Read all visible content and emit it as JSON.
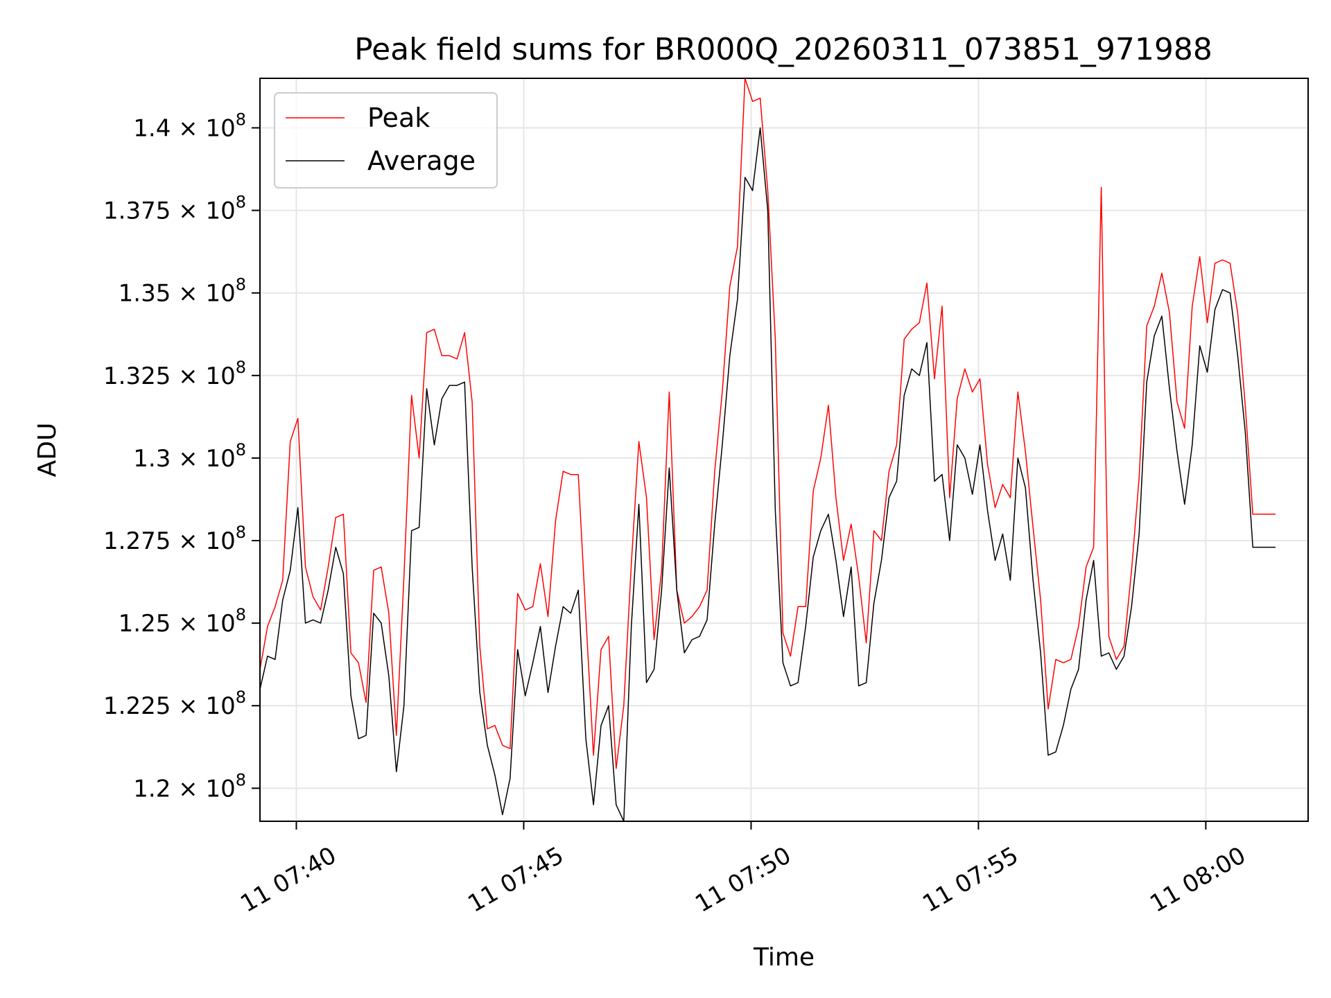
{
  "chart_data": {
    "type": "line",
    "title": "Peak field sums for BR000Q_20260311_073851_971988",
    "xlabel": "Time",
    "ylabel": "ADU",
    "grid": true,
    "legend_position": "top-left",
    "xlim_minutes": [
      -0.8,
      22.25
    ],
    "ylim": [
      119000000,
      141500000
    ],
    "x_ticks": [
      {
        "value": 0,
        "label": "11 07:40"
      },
      {
        "value": 5,
        "label": "11 07:45"
      },
      {
        "value": 10,
        "label": "11 07:50"
      },
      {
        "value": 15,
        "label": "11 07:55"
      },
      {
        "value": 20,
        "label": "11 08:00"
      }
    ],
    "y_ticks": [
      {
        "value": 120000000,
        "mantissa": "1.2"
      },
      {
        "value": 122500000,
        "mantissa": "1.225"
      },
      {
        "value": 125000000,
        "mantissa": "1.25"
      },
      {
        "value": 127500000,
        "mantissa": "1.275"
      },
      {
        "value": 130000000,
        "mantissa": "1.3"
      },
      {
        "value": 132500000,
        "mantissa": "1.325"
      },
      {
        "value": 135000000,
        "mantissa": "1.35"
      },
      {
        "value": 137500000,
        "mantissa": "1.375"
      },
      {
        "value": 140000000,
        "mantissa": "1.4"
      }
    ],
    "y_tick_suffix": "× 10",
    "y_tick_exponent": "8",
    "x_start_minutes": -0.8,
    "x_step_minutes": 0.16667,
    "series": [
      {
        "name": "Peak",
        "color": "#ff0000",
        "values": [
          123.6,
          124.9,
          125.5,
          126.3,
          130.5,
          131.2,
          126.7,
          125.8,
          125.4,
          126.7,
          128.2,
          128.3,
          124.1,
          123.8,
          122.6,
          126.6,
          126.7,
          125.3,
          121.6,
          126.4,
          131.9,
          130.0,
          133.8,
          133.9,
          133.1,
          133.1,
          133.0,
          133.8,
          131.7,
          124.3,
          121.8,
          121.9,
          121.3,
          121.2,
          125.9,
          125.4,
          125.5,
          126.8,
          125.2,
          128.1,
          129.6,
          129.5,
          129.5,
          125.2,
          121.0,
          124.2,
          124.6,
          120.6,
          122.5,
          126.8,
          130.5,
          128.8,
          124.5,
          126.6,
          132.0,
          126.0,
          125.0,
          125.2,
          125.5,
          126.0,
          129.6,
          132.0,
          135.2,
          136.4,
          141.5,
          140.8,
          140.9,
          138.1,
          133.6,
          124.7,
          124.0,
          125.5,
          125.5,
          129.0,
          130.0,
          131.6,
          128.8,
          126.9,
          128.0,
          126.4,
          124.4,
          127.8,
          127.5,
          129.6,
          130.4,
          133.6,
          133.9,
          134.1,
          135.3,
          132.4,
          134.6,
          128.8,
          131.8,
          132.7,
          132.0,
          132.4,
          129.8,
          128.5,
          129.2,
          128.8,
          132.0,
          130.2,
          127.9,
          125.7,
          122.4,
          123.9,
          123.8,
          123.9,
          124.9,
          126.7,
          127.3,
          138.2,
          124.6,
          123.9,
          124.3,
          126.6,
          129.4,
          134.0,
          134.6,
          135.6,
          134.4,
          131.7,
          130.9,
          134.6,
          136.1,
          134.1,
          135.9,
          136.0,
          135.9,
          134.4,
          131.6,
          128.3,
          128.3,
          128.3,
          128.3
        ]
      },
      {
        "name": "Average",
        "color": "#000000",
        "values": [
          123.0,
          124.0,
          123.9,
          125.7,
          126.6,
          128.5,
          125.0,
          125.1,
          125.0,
          126.0,
          127.3,
          126.5,
          122.8,
          121.5,
          121.6,
          125.3,
          125.0,
          123.4,
          120.5,
          122.5,
          127.8,
          127.9,
          132.1,
          130.4,
          131.8,
          132.2,
          132.2,
          132.3,
          126.7,
          122.9,
          121.3,
          120.4,
          119.2,
          120.3,
          124.2,
          122.8,
          123.8,
          124.9,
          122.9,
          124.3,
          125.5,
          125.3,
          126.0,
          121.5,
          119.5,
          121.9,
          122.5,
          119.5,
          119.0,
          124.9,
          128.6,
          123.2,
          123.6,
          126.0,
          129.7,
          126.0,
          124.1,
          124.5,
          124.6,
          125.1,
          128.0,
          130.4,
          133.1,
          134.8,
          138.5,
          138.1,
          140.0,
          137.5,
          128.4,
          123.8,
          123.1,
          123.2,
          124.9,
          127.0,
          127.8,
          128.3,
          126.9,
          125.2,
          126.7,
          123.1,
          123.2,
          125.6,
          126.9,
          128.8,
          129.3,
          131.9,
          132.7,
          132.5,
          133.5,
          129.3,
          129.5,
          127.5,
          130.4,
          130.0,
          128.9,
          130.4,
          128.4,
          126.9,
          127.7,
          126.3,
          130.0,
          129.1,
          126.3,
          124.1,
          121.0,
          121.1,
          121.9,
          123.0,
          123.6,
          125.7,
          126.9,
          124.0,
          124.1,
          123.6,
          124.0,
          125.5,
          127.7,
          132.3,
          133.7,
          134.3,
          132.1,
          130.2,
          128.6,
          130.4,
          133.4,
          132.6,
          134.5,
          135.1,
          135.0,
          133.1,
          130.8,
          127.3,
          127.3,
          127.3,
          127.3
        ]
      }
    ]
  }
}
